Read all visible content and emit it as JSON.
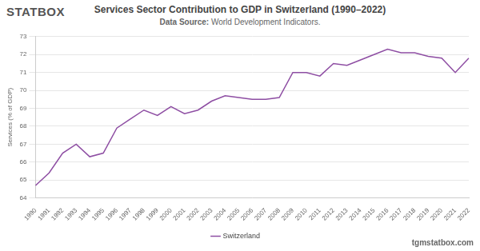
{
  "page": {
    "logo": "STATBOX",
    "website": "tgmstatbox.com"
  },
  "chart_data": {
    "type": "line",
    "title": "Services Sector Contribution to GDP in Switzerland (1990–2022)",
    "subtitle": "Data Source: World Development Indicators.",
    "y_label": "Services (% of GDP)",
    "categories": [
      "1990",
      "1991",
      "1992",
      "1993",
      "1994",
      "1995",
      "1996",
      "1997",
      "1998",
      "1999",
      "2000",
      "2001",
      "2002",
      "2003",
      "2004",
      "2005",
      "2006",
      "2007",
      "2008",
      "2009",
      "2010",
      "2011",
      "2012",
      "2013",
      "2014",
      "2015",
      "2016",
      "2017",
      "2018",
      "2019",
      "2020",
      "2021",
      "2022"
    ],
    "series": [
      {
        "name": "Switzerland",
        "color": "#8e4ea3",
        "values": [
          64.7,
          65.4,
          66.5,
          67.0,
          66.3,
          66.5,
          67.9,
          68.4,
          68.9,
          68.6,
          69.1,
          68.7,
          68.9,
          69.4,
          69.7,
          69.6,
          69.5,
          69.5,
          69.6,
          71.0,
          71.0,
          70.8,
          71.5,
          71.4,
          71.7,
          72.0,
          72.3,
          72.1,
          72.1,
          71.9,
          71.8,
          71.0,
          71.8
        ]
      }
    ],
    "ylim": [
      64,
      73
    ],
    "yticks": [
      64,
      65,
      66,
      67,
      68,
      69,
      70,
      71,
      72,
      73
    ],
    "grid": true,
    "legend": "bottom",
    "marker": "none",
    "line_style": "solid"
  }
}
